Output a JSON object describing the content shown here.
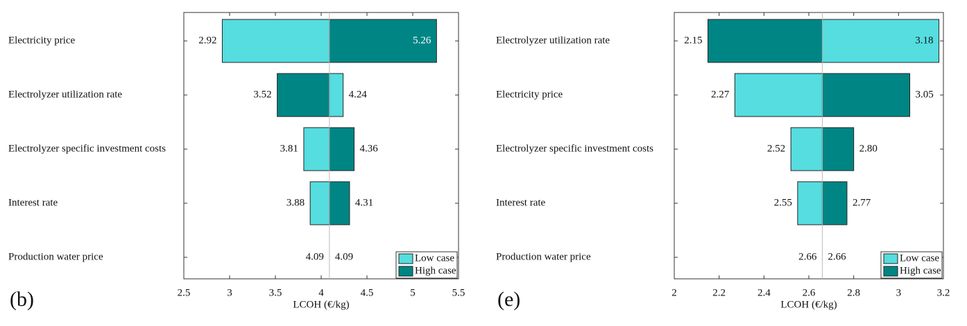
{
  "chart_data": [
    {
      "type": "tornado",
      "panel_label": "(b)",
      "xlabel": "LCOH (€/kg)",
      "categories": [
        "Electricity price",
        "Electrolyzer utilization rate",
        "Electrolyzer specific investment costs",
        "Interest rate",
        "Production water price"
      ],
      "base": 4.09,
      "series": [
        {
          "name": "Low case",
          "color": "#55dde0",
          "values": [
            2.92,
            4.24,
            3.81,
            3.88,
            4.09
          ]
        },
        {
          "name": "High case",
          "color": "#008585",
          "values": [
            5.26,
            3.52,
            4.36,
            4.31,
            4.09
          ]
        }
      ],
      "xlim": [
        2.5,
        5.5
      ],
      "xticks": [
        2.5,
        3,
        3.5,
        4,
        4.5,
        5,
        5.5
      ],
      "legend": "lower right"
    },
    {
      "type": "tornado",
      "panel_label": "(e)",
      "xlabel": "LCOH (€/kg)",
      "categories": [
        "Electrolyzer utilization rate",
        "Electricity price",
        "Electrolyzer specific investment costs",
        "Interest rate",
        "Production water price"
      ],
      "base": 2.66,
      "series": [
        {
          "name": "Low case",
          "color": "#55dde0",
          "values": [
            3.18,
            2.27,
            2.52,
            2.55,
            2.66
          ]
        },
        {
          "name": "High case",
          "color": "#008585",
          "values": [
            2.15,
            3.05,
            2.8,
            2.77,
            2.66
          ],
          "value_labels": [
            "2.15",
            "3.05",
            "2.80",
            "2.77",
            "2.66"
          ]
        }
      ],
      "xlim": [
        2,
        3.2
      ],
      "xticks": [
        2,
        2.2,
        2.4,
        2.6,
        2.8,
        3,
        3.2
      ],
      "legend": "lower right"
    }
  ]
}
